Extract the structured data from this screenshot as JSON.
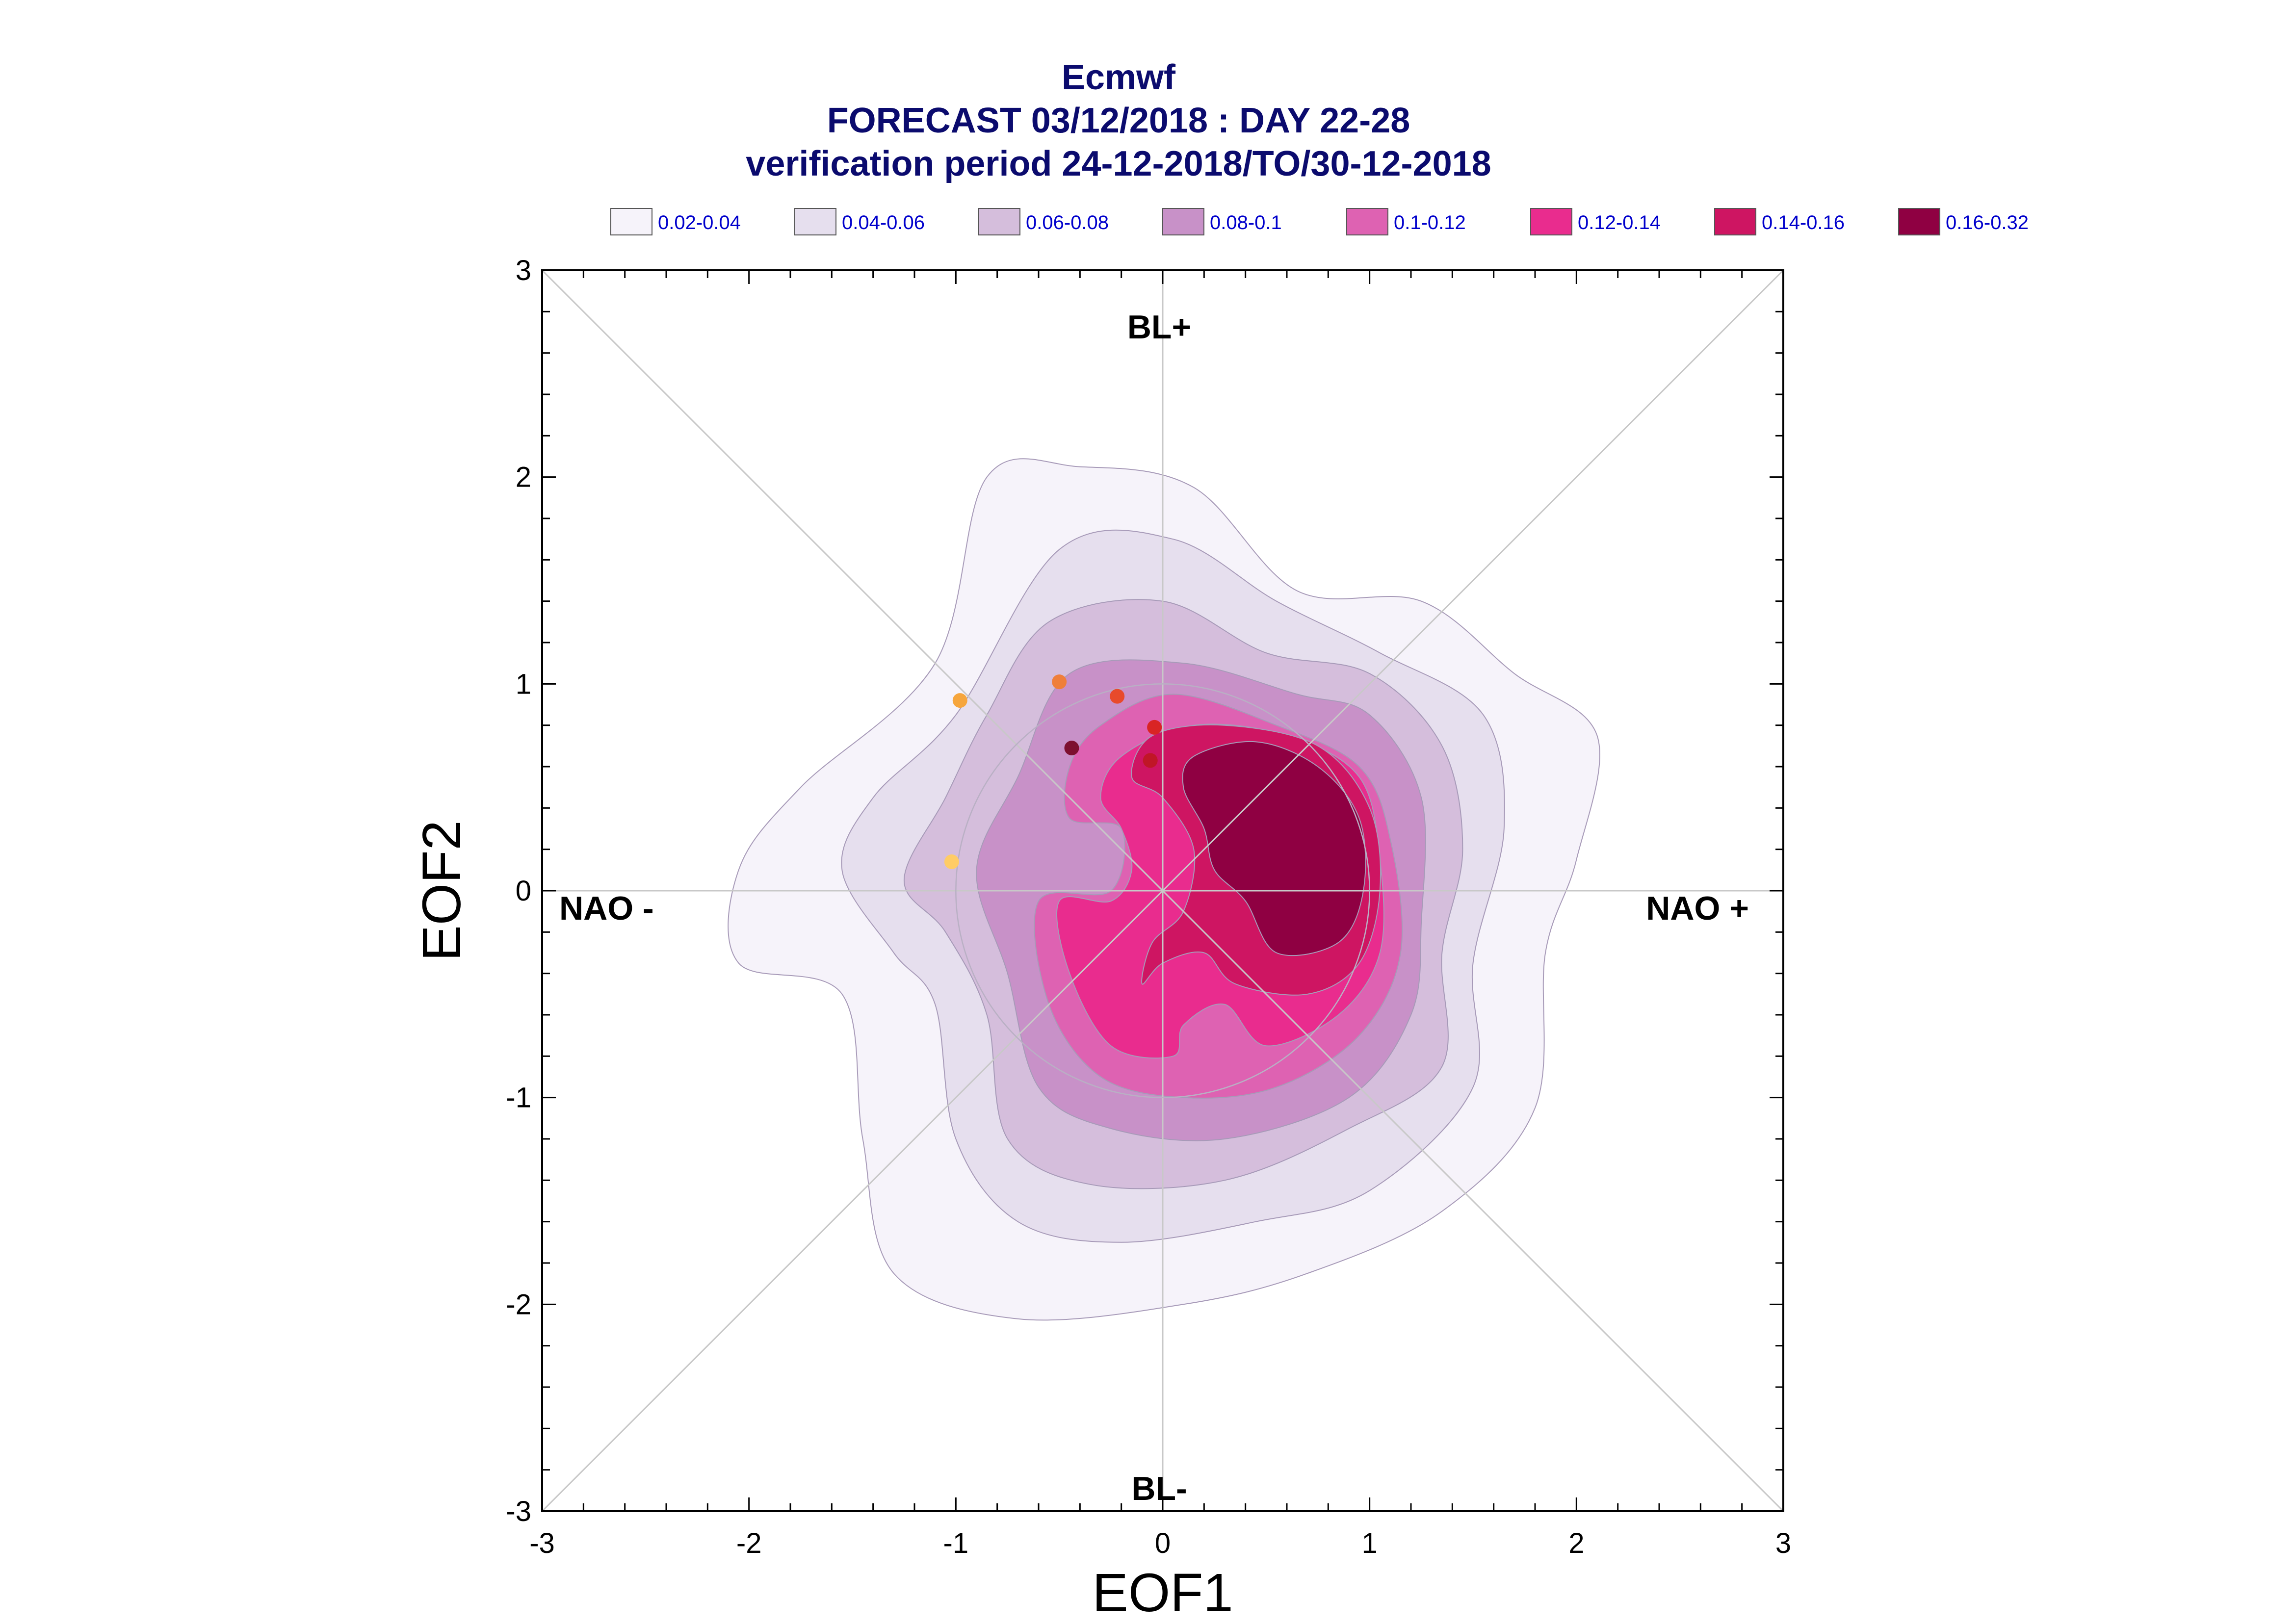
{
  "title": {
    "line1": "Ecmwf",
    "line2": "FORECAST 03/12/2018 : DAY 22-28",
    "line3": "verification period 24-12-2018/TO/30-12-2018"
  },
  "chart_data": {
    "type": "contour",
    "xlabel": "EOF1",
    "ylabel": "EOF2",
    "xlim": [
      -3,
      3
    ],
    "ylim": [
      -3,
      3
    ],
    "x_ticks": [
      "-3",
      "-2",
      "-1",
      "0",
      "1",
      "2",
      "3"
    ],
    "y_ticks": [
      "-3",
      "-2",
      "-1",
      "0",
      "1",
      "2",
      "3"
    ],
    "legend": [
      {
        "label": "0.02-0.04",
        "color": "#f6f3fa"
      },
      {
        "label": "0.04-0.06",
        "color": "#e6dfee"
      },
      {
        "label": "0.06-0.08",
        "color": "#d5bedc"
      },
      {
        "label": "0.08-0.1",
        "color": "#c891c8"
      },
      {
        "label": "0.1-0.12",
        "color": "#de62b2"
      },
      {
        "label": "0.12-0.14",
        "color": "#e92c8e"
      },
      {
        "label": "0.14-0.16",
        "color": "#ce1562"
      },
      {
        "label": "0.16-0.32",
        "color": "#8f0042"
      }
    ],
    "regime_labels": {
      "top": "BL+",
      "bottom": "BL-",
      "left": "NAO -",
      "right": "NAO +"
    },
    "contours": [
      {
        "level": "0.02-0.04",
        "points": [
          [
            -0.85,
            2.0
          ],
          [
            -0.4,
            2.05
          ],
          [
            0.15,
            1.95
          ],
          [
            0.65,
            1.45
          ],
          [
            1.25,
            1.4
          ],
          [
            1.7,
            1.05
          ],
          [
            2.1,
            0.75
          ],
          [
            2.0,
            0.15
          ],
          [
            1.85,
            -0.3
          ],
          [
            1.8,
            -1.05
          ],
          [
            1.35,
            -1.55
          ],
          [
            0.7,
            -1.85
          ],
          [
            0.1,
            -2.0
          ],
          [
            -0.7,
            -2.07
          ],
          [
            -1.3,
            -1.85
          ],
          [
            -1.45,
            -1.2
          ],
          [
            -1.55,
            -0.5
          ],
          [
            -2.05,
            -0.35
          ],
          [
            -2.05,
            0.1
          ],
          [
            -1.75,
            0.5
          ],
          [
            -1.1,
            1.1
          ]
        ]
      },
      {
        "level": "0.04-0.06",
        "points": [
          [
            -0.5,
            1.65
          ],
          [
            0.05,
            1.7
          ],
          [
            0.55,
            1.4
          ],
          [
            1.05,
            1.15
          ],
          [
            1.55,
            0.85
          ],
          [
            1.65,
            0.3
          ],
          [
            1.5,
            -0.35
          ],
          [
            1.5,
            -0.95
          ],
          [
            1.0,
            -1.45
          ],
          [
            0.45,
            -1.6
          ],
          [
            -0.2,
            -1.7
          ],
          [
            -0.7,
            -1.6
          ],
          [
            -1.0,
            -1.2
          ],
          [
            -1.1,
            -0.55
          ],
          [
            -1.3,
            -0.3
          ],
          [
            -1.55,
            0.1
          ],
          [
            -1.4,
            0.45
          ],
          [
            -1.0,
            0.85
          ]
        ]
      },
      {
        "level": "0.06-0.08",
        "points": [
          [
            -0.55,
            1.3
          ],
          [
            0.0,
            1.4
          ],
          [
            0.5,
            1.15
          ],
          [
            1.0,
            1.05
          ],
          [
            1.35,
            0.7
          ],
          [
            1.45,
            0.2
          ],
          [
            1.35,
            -0.3
          ],
          [
            1.35,
            -0.85
          ],
          [
            0.9,
            -1.15
          ],
          [
            0.3,
            -1.4
          ],
          [
            -0.35,
            -1.42
          ],
          [
            -0.75,
            -1.2
          ],
          [
            -0.85,
            -0.6
          ],
          [
            -1.05,
            -0.2
          ],
          [
            -1.25,
            0.05
          ],
          [
            -1.05,
            0.45
          ],
          [
            -0.85,
            0.85
          ]
        ]
      },
      {
        "level": "0.08-0.1",
        "points": [
          [
            -0.45,
            1.05
          ],
          [
            0.1,
            1.1
          ],
          [
            0.65,
            0.95
          ],
          [
            1.0,
            0.85
          ],
          [
            1.25,
            0.45
          ],
          [
            1.25,
            -0.15
          ],
          [
            1.2,
            -0.6
          ],
          [
            0.9,
            -1.0
          ],
          [
            0.3,
            -1.2
          ],
          [
            -0.25,
            -1.15
          ],
          [
            -0.6,
            -0.95
          ],
          [
            -0.75,
            -0.4
          ],
          [
            -0.9,
            0.1
          ],
          [
            -0.7,
            0.55
          ]
        ]
      },
      {
        "level": "0.1-0.12",
        "points": [
          [
            -0.3,
            0.8
          ],
          [
            0.05,
            0.95
          ],
          [
            0.55,
            0.8
          ],
          [
            0.95,
            0.6
          ],
          [
            1.1,
            0.25
          ],
          [
            1.15,
            -0.3
          ],
          [
            0.95,
            -0.7
          ],
          [
            0.55,
            -0.95
          ],
          [
            0.1,
            -1.0
          ],
          [
            -0.3,
            -0.9
          ],
          [
            -0.55,
            -0.55
          ],
          [
            -0.6,
            -0.05
          ],
          [
            -0.25,
            0.0
          ],
          [
            -0.2,
            0.3
          ],
          [
            -0.45,
            0.35
          ],
          [
            -0.45,
            0.6
          ]
        ]
      },
      {
        "level": "0.12-0.14",
        "points": [
          [
            -0.2,
            0.65
          ],
          [
            0.15,
            0.8
          ],
          [
            0.6,
            0.75
          ],
          [
            0.95,
            0.55
          ],
          [
            1.05,
            0.15
          ],
          [
            1.05,
            -0.3
          ],
          [
            0.85,
            -0.6
          ],
          [
            0.5,
            -0.75
          ],
          [
            0.3,
            -0.55
          ],
          [
            0.1,
            -0.65
          ],
          [
            0.05,
            -0.8
          ],
          [
            -0.25,
            -0.75
          ],
          [
            -0.45,
            -0.4
          ],
          [
            -0.5,
            -0.05
          ],
          [
            -0.25,
            -0.05
          ],
          [
            -0.15,
            0.1
          ],
          [
            -0.2,
            0.3
          ],
          [
            -0.3,
            0.45
          ]
        ]
      },
      {
        "level": "0.14-0.16",
        "points": [
          [
            -0.05,
            0.75
          ],
          [
            0.3,
            0.8
          ],
          [
            0.75,
            0.7
          ],
          [
            1.0,
            0.4
          ],
          [
            1.05,
            0.0
          ],
          [
            0.95,
            -0.35
          ],
          [
            0.7,
            -0.5
          ],
          [
            0.35,
            -0.45
          ],
          [
            0.2,
            -0.3
          ],
          [
            0.0,
            -0.35
          ],
          [
            -0.1,
            -0.45
          ],
          [
            -0.05,
            -0.25
          ],
          [
            0.1,
            -0.1
          ],
          [
            0.15,
            0.2
          ],
          [
            0.0,
            0.45
          ],
          [
            -0.15,
            0.55
          ]
        ]
      },
      {
        "level": "0.16-0.32",
        "points": [
          [
            0.15,
            0.65
          ],
          [
            0.45,
            0.72
          ],
          [
            0.75,
            0.6
          ],
          [
            0.95,
            0.35
          ],
          [
            0.97,
            0.0
          ],
          [
            0.85,
            -0.25
          ],
          [
            0.55,
            -0.3
          ],
          [
            0.4,
            -0.05
          ],
          [
            0.25,
            0.1
          ],
          [
            0.2,
            0.3
          ],
          [
            0.1,
            0.5
          ]
        ]
      }
    ],
    "points": [
      {
        "x": -1.02,
        "y": 0.14,
        "color": "#ffcc66"
      },
      {
        "x": -0.98,
        "y": 0.92,
        "color": "#f6a63d"
      },
      {
        "x": -0.5,
        "y": 1.01,
        "color": "#ef7f3b"
      },
      {
        "x": -0.22,
        "y": 0.94,
        "color": "#e84a2c"
      },
      {
        "x": -0.04,
        "y": 0.79,
        "color": "#d92424"
      },
      {
        "x": -0.06,
        "y": 0.63,
        "color": "#c01627"
      },
      {
        "x": -0.44,
        "y": 0.69,
        "color": "#7d1030"
      }
    ],
    "grid": "center cross and diagonals",
    "legend_position": "top"
  }
}
